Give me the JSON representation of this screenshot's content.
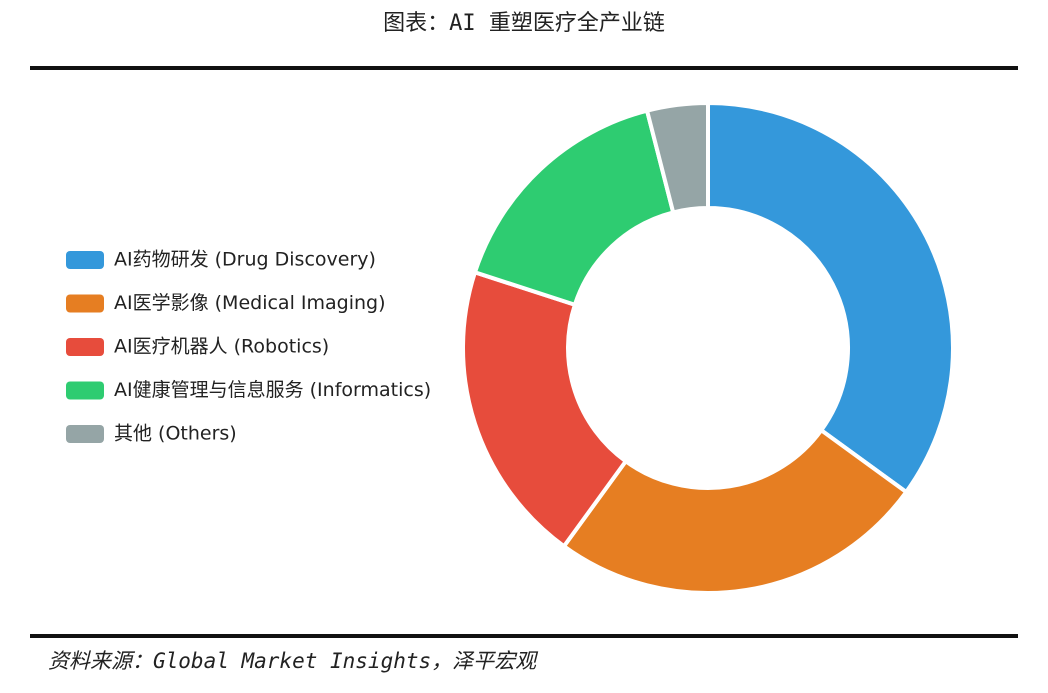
{
  "chart_data": {
    "type": "doughnut",
    "title": "图表：AI 重塑医疗全产业链",
    "categories": [
      "AI药物研发 (Drug Discovery)",
      "AI医学影像 (Medical Imaging)",
      "AI医疗机器人 (Robotics)",
      "AI健康管理与信息服务 (Informatics)",
      "其他 (Others)"
    ],
    "values": [
      35,
      25,
      20,
      16,
      4
    ],
    "colors": [
      "#3498db",
      "#e67e22",
      "#e74c3c",
      "#2ecc71",
      "#95a5a6"
    ],
    "legend": "left"
  },
  "source": "资料来源：Global Market Insights，泽平宏观"
}
